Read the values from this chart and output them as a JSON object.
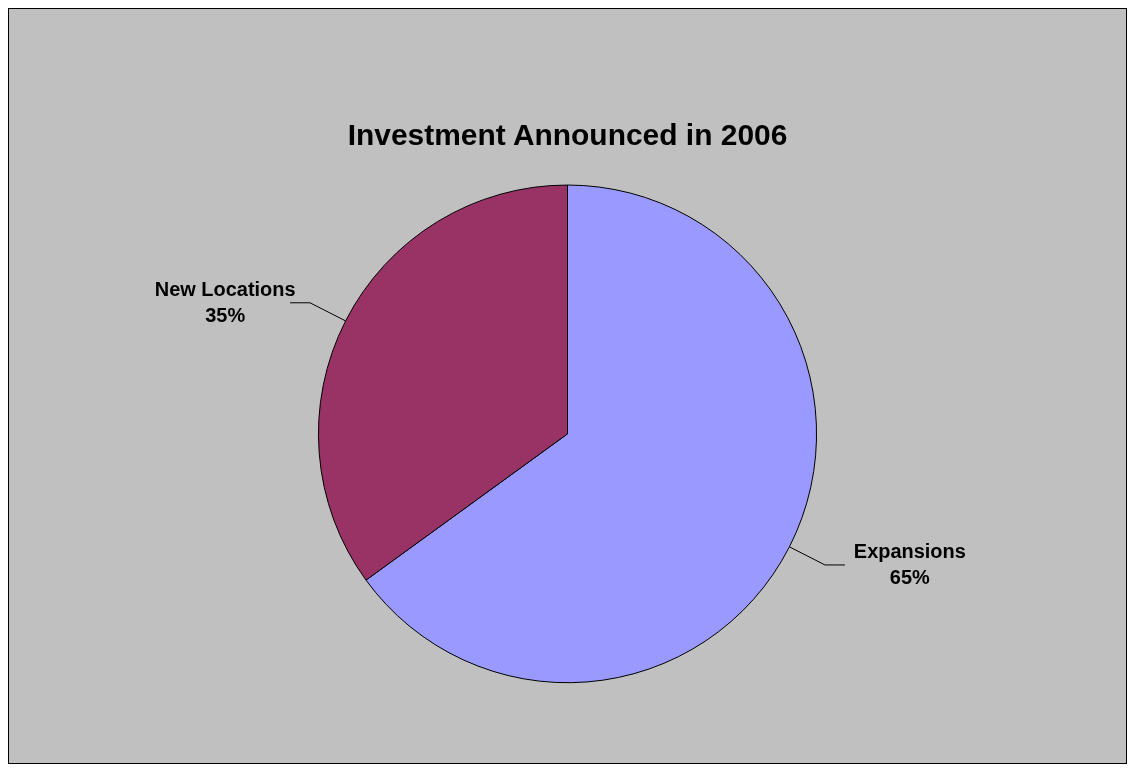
{
  "chart_data": {
    "type": "pie",
    "title": "Investment Announced in 2006",
    "categories": [
      "Expansions",
      "New Locations"
    ],
    "values": [
      65,
      35
    ],
    "colors": [
      "#9999ff",
      "#993366"
    ],
    "value_labels": [
      "65%",
      "35%"
    ],
    "legend": false
  }
}
